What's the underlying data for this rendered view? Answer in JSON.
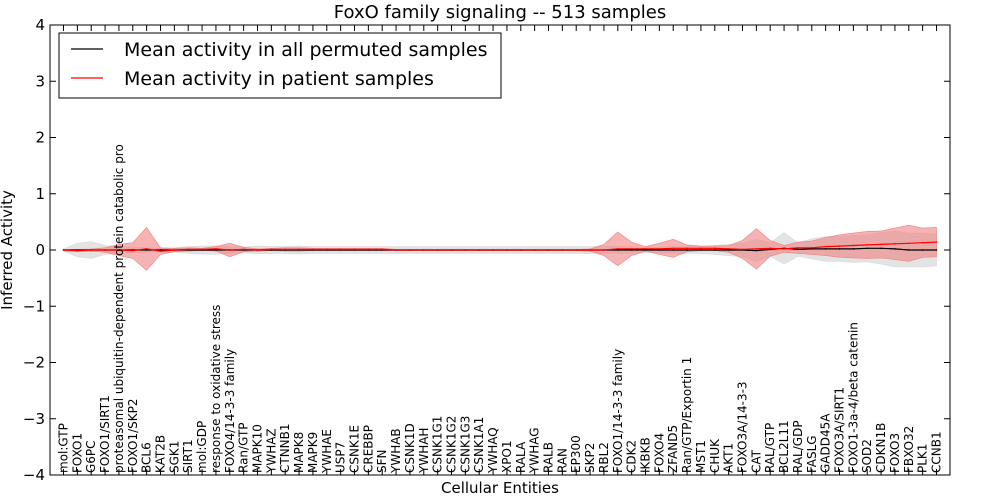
{
  "chart_data": {
    "type": "line",
    "title": "FoxO family signaling -- 513 samples",
    "xlabel": "Cellular Entities",
    "ylabel": "Inferred Activity",
    "ylim": [
      -4,
      4
    ],
    "yticks": [
      -4,
      -3,
      -2,
      -1,
      0,
      1,
      2,
      3,
      4
    ],
    "legend_position": "top-left",
    "categories": [
      "mol:GTP",
      "FOXO1",
      "G6PC",
      "FOXO1/SIRT1",
      "proteasomal ubiquitin-dependent protein catabolic pro",
      "FOXO1/SKP2",
      "BCL6",
      "KAT2B",
      "SGK1",
      "SIRT1",
      "mol:GDP",
      "response to oxidative stress",
      "FOXO4/14-3-3 family",
      "Ran/GTP",
      "MAPK10",
      "YWHAZ",
      "CTNNB1",
      "MAPK8",
      "MAPK9",
      "YWHAE",
      "USP7",
      "CSNK1E",
      "CREBBP",
      "SFN",
      "YWHAB",
      "CSNK1D",
      "YWHAH",
      "CSNK1G1",
      "CSNK1G2",
      "CSNK1G3",
      "CSNK1A1",
      "YWHAQ",
      "XPO1",
      "RALA",
      "YWHAG",
      "RALB",
      "RAN",
      "EP300",
      "SKP2",
      "RBL2",
      "FOXO1/14-3-3 family",
      "CDK2",
      "IKBKB",
      "FOXO4",
      "ZFAND5",
      "Ran/GTP/Exportin 1",
      "MST1",
      "CHUK",
      "AKT1",
      "FOXO3A/14-3-3",
      "CAT",
      "RAL/GTP",
      "BCL2L11",
      "RAL/GDP",
      "FASLG",
      "GADD45A",
      "FOXO3A/SIRT1",
      "FOXO1-3a-4/beta catenin",
      "SOD2",
      "CDKN1B",
      "FOXO3",
      "FBXO32",
      "PLK1",
      "CCNB1"
    ],
    "series": [
      {
        "name": "Mean activity in all permuted samples",
        "color": "#000000",
        "band_color": "#d9d9d9",
        "values": [
          0,
          0,
          0,
          0,
          0,
          0,
          0,
          0,
          0,
          0,
          0,
          0,
          0,
          0,
          0,
          0,
          0,
          0,
          0,
          0,
          0,
          0,
          0,
          0,
          0,
          0,
          0,
          0,
          0,
          0,
          0,
          0,
          0,
          0,
          0,
          0,
          0,
          0,
          0,
          0,
          0,
          0,
          0,
          0,
          0,
          0,
          0,
          0,
          0,
          0,
          -0.01,
          0.01,
          0.03,
          0.01,
          0.02,
          0.02,
          0.02,
          0.02,
          0.03,
          0.03,
          0.02,
          0.0,
          0.0,
          0.0
        ],
        "band_half_width": [
          0.02,
          0.12,
          0.15,
          0.08,
          0.06,
          0.05,
          0.04,
          0.03,
          0.04,
          0.06,
          0.07,
          0.08,
          0.06,
          0.05,
          0.07,
          0.06,
          0.06,
          0.07,
          0.06,
          0.06,
          0.06,
          0.06,
          0.06,
          0.06,
          0.06,
          0.06,
          0.06,
          0.06,
          0.06,
          0.06,
          0.06,
          0.06,
          0.06,
          0.06,
          0.06,
          0.06,
          0.06,
          0.06,
          0.06,
          0.06,
          0.06,
          0.06,
          0.05,
          0.05,
          0.06,
          0.06,
          0.06,
          0.08,
          0.1,
          0.12,
          0.2,
          0.12,
          0.28,
          0.12,
          0.18,
          0.22,
          0.22,
          0.24,
          0.24,
          0.28,
          0.32,
          0.3,
          0.3,
          0.28
        ]
      },
      {
        "name": "Mean activity in patient samples",
        "color": "#ff0000",
        "band_color": "#f08080",
        "values": [
          0,
          -0.01,
          0.0,
          0.0,
          0.0,
          -0.01,
          0.02,
          -0.02,
          0.0,
          0.01,
          0.01,
          0.02,
          0.0,
          0.01,
          0.0,
          0.01,
          0.01,
          0.01,
          0.01,
          0.01,
          0.01,
          0.01,
          0.01,
          0.01,
          0.0,
          0.0,
          0.0,
          0.0,
          0.0,
          0.0,
          0.0,
          0.0,
          0.0,
          0.0,
          0.0,
          0.0,
          0.0,
          0.0,
          0.0,
          0.0,
          0.02,
          0.02,
          0.02,
          0.02,
          0.03,
          0.03,
          0.03,
          0.03,
          0.02,
          0.01,
          0.02,
          0.03,
          0.02,
          0.04,
          0.04,
          0.06,
          0.07,
          0.08,
          0.09,
          0.1,
          0.11,
          0.12,
          0.13,
          0.14
        ],
        "band_half_width": [
          0.01,
          0.02,
          0.02,
          0.04,
          0.1,
          0.14,
          0.38,
          0.06,
          0.03,
          0.03,
          0.02,
          0.04,
          0.12,
          0.04,
          0.02,
          0.02,
          0.03,
          0.03,
          0.02,
          0.02,
          0.02,
          0.02,
          0.02,
          0.02,
          0.01,
          0.01,
          0.01,
          0.01,
          0.01,
          0.01,
          0.01,
          0.01,
          0.01,
          0.01,
          0.01,
          0.01,
          0.01,
          0.01,
          0.02,
          0.1,
          0.3,
          0.12,
          0.04,
          0.1,
          0.16,
          0.06,
          0.04,
          0.04,
          0.06,
          0.16,
          0.36,
          0.14,
          0.06,
          0.1,
          0.12,
          0.16,
          0.2,
          0.22,
          0.24,
          0.24,
          0.28,
          0.32,
          0.26,
          0.26
        ]
      }
    ]
  }
}
